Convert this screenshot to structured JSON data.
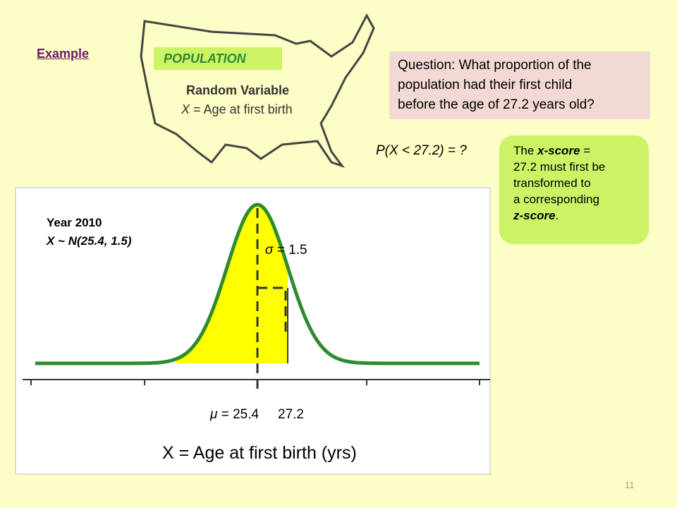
{
  "header": {
    "link": "Example"
  },
  "population": {
    "badge": "POPULATION",
    "variable_title": "Random Variable",
    "variable_symbol": "X",
    "variable_def": "= Age at first birth"
  },
  "question": {
    "lines": [
      "Question:  What proportion of the",
      "population had their first child",
      "before the age of 27.2 years old?"
    ]
  },
  "probability": "P(X < 27.2) = ?",
  "note": {
    "parts": [
      "The",
      "x-score",
      "=",
      "27.2 must first be",
      "transformed to",
      "a corresponding",
      "z-score",
      "."
    ]
  },
  "graph": {
    "year": "Year 2010",
    "model": "X ~ N(25.4, 1.5)",
    "sigma_symbol": "σ",
    "sigma_text": "= 1.5",
    "mu_symbol": "μ",
    "mu_text": "= 25.4",
    "x_value": "27.2",
    "axis_label": "X = Age at first birth (yrs)"
  },
  "footer": {
    "page": "11"
  }
}
